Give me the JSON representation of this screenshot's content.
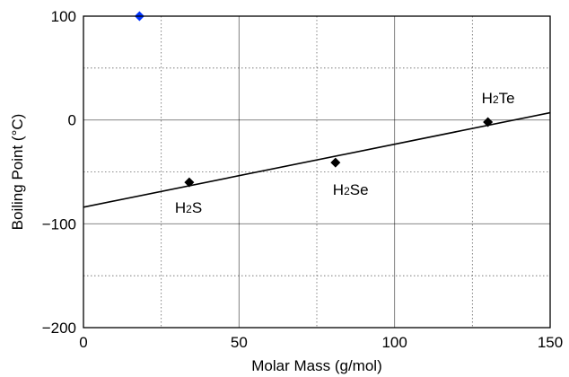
{
  "chart_data": {
    "type": "scatter",
    "xlabel": "Molar Mass (g/mol)",
    "ylabel": "Boiling Point (°C)",
    "xlim": [
      0,
      150
    ],
    "ylim": [
      -200,
      100
    ],
    "x_ticks": [
      0,
      50,
      100,
      150
    ],
    "x_tick_labels": [
      "0",
      "50",
      "100",
      "150"
    ],
    "y_ticks": [
      100,
      0,
      -100,
      -200
    ],
    "y_tick_labels": [
      "100",
      "0",
      "−100",
      "−200"
    ],
    "grid": true,
    "series": [
      {
        "marker": "diamond",
        "color": "#000000",
        "points": [
          {
            "x": 34,
            "y": -60,
            "label_base": "H",
            "label_sub": "2",
            "label_rest": "S"
          },
          {
            "x": 81,
            "y": -41,
            "label_base": "H",
            "label_sub": "2",
            "label_rest": "Se"
          },
          {
            "x": 130,
            "y": -2,
            "label_base": "H",
            "label_sub": "2",
            "label_rest": "Te"
          }
        ]
      },
      {
        "marker": "diamond",
        "color": "#0033ff",
        "points": [
          {
            "x": 18,
            "y": 100
          }
        ]
      }
    ],
    "trendline": {
      "color": "#000000",
      "x_start": 0,
      "y_start": -84,
      "x_end": 150,
      "y_end": 7
    }
  }
}
